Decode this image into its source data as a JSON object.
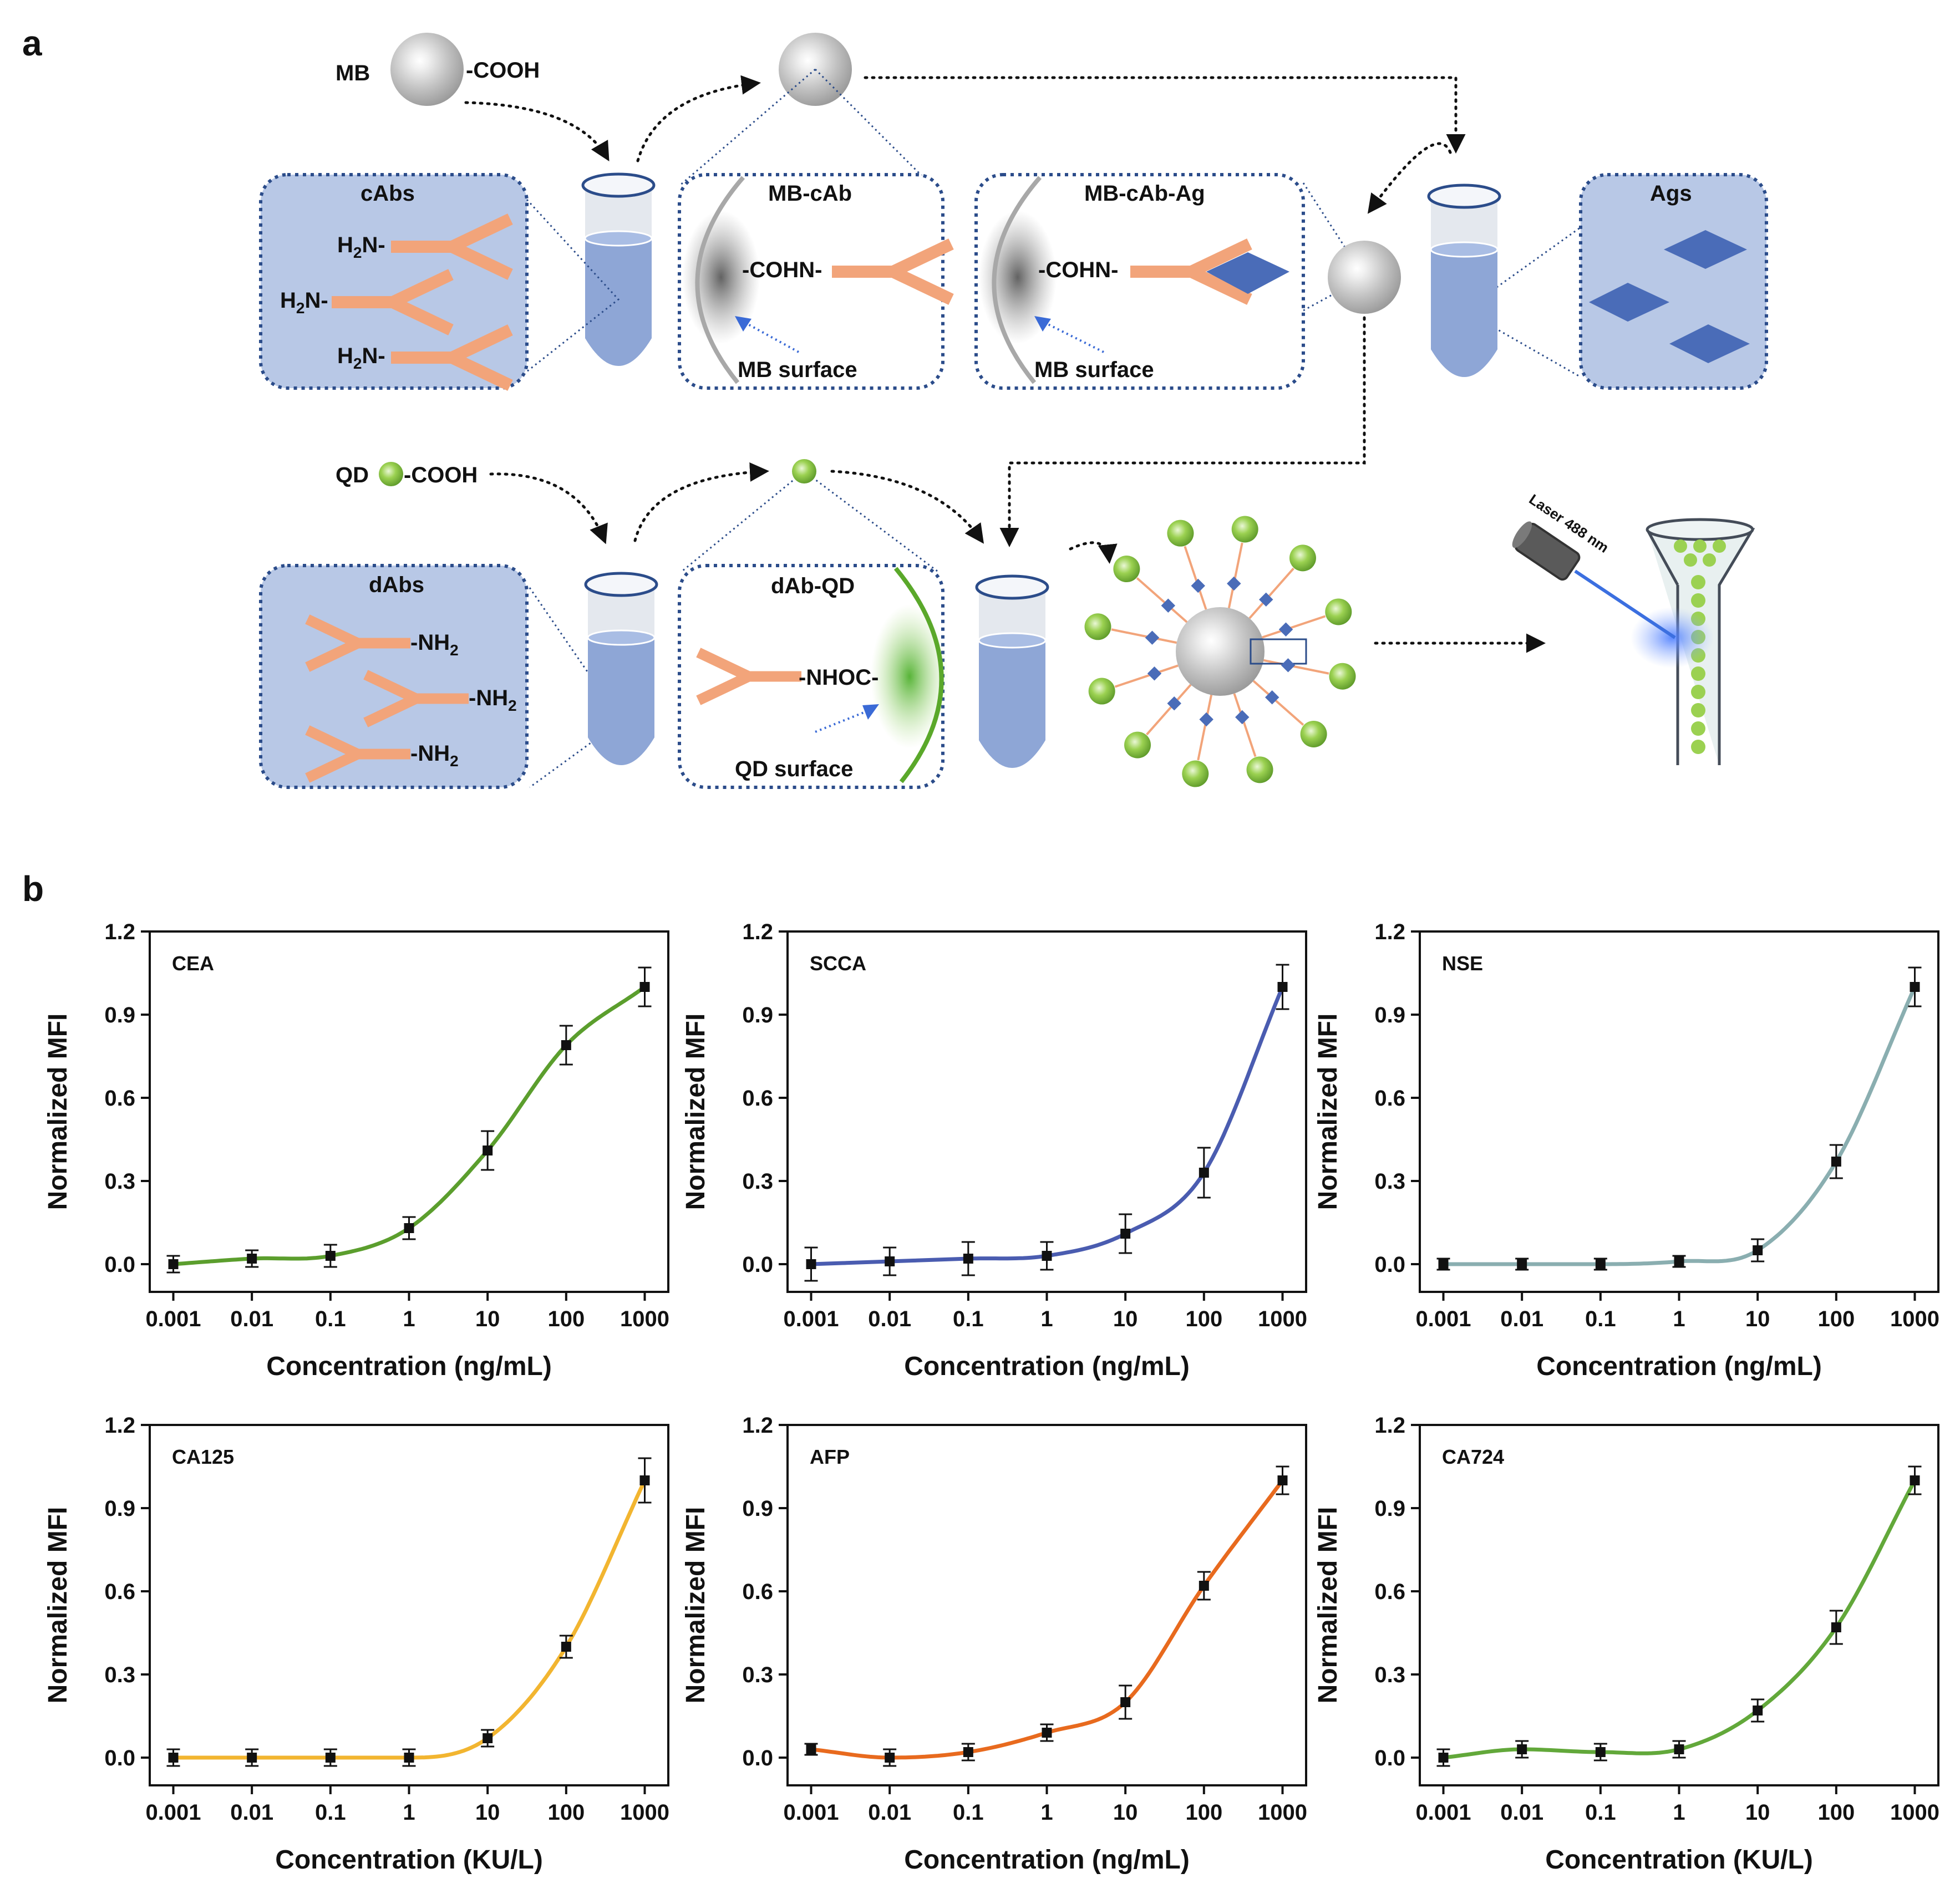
{
  "panels": {
    "a": "a",
    "b": "b"
  },
  "colors": {
    "box_fill": "#b8c8e6",
    "box_border": "#2b4c8a",
    "tube_liquid": "#8ea6d6",
    "tube_empty": "#e4e8ee",
    "antibody": "#f2a47a",
    "antigen": "#4a6cb8",
    "mb_gray": "#c9c9c9",
    "qd_green": "#8cc63f"
  },
  "scheme": {
    "mb_label": "MB",
    "mb_cooh": "-COOH",
    "qd_label": "QD",
    "qd_cooh": "-COOH",
    "cabs_box": {
      "title": "cAbs",
      "items": [
        {
          "main": "H",
          "sub": "2",
          "rest": "N-"
        },
        {
          "main": "H",
          "sub": "2",
          "rest": "N-"
        },
        {
          "main": "H",
          "sub": "2",
          "rest": "N-"
        }
      ]
    },
    "mbcab_box": {
      "title": "MB-cAb",
      "link": "-COHN-",
      "surface": "MB surface"
    },
    "mbcabag_box": {
      "title": "MB-cAb-Ag",
      "link": "-COHN-",
      "surface": "MB surface"
    },
    "ags_box": {
      "title": "Ags"
    },
    "dabs_box": {
      "title": "dAbs",
      "items": [
        {
          "main": "-NH",
          "sub": "2"
        },
        {
          "main": "-NH",
          "sub": "2"
        },
        {
          "main": "-NH",
          "sub": "2"
        }
      ]
    },
    "dabqd_box": {
      "title": "dAb-QD",
      "link": "-NHOC-",
      "surface": "QD surface"
    },
    "laser_label": "Laser 488 nm"
  },
  "chart_data": [
    {
      "type": "scatter",
      "title": "CEA",
      "xlabel": "Concentration (ng/mL)",
      "ylabel": "Normalized MFI",
      "xscale": "log",
      "ylim": [
        -0.1,
        1.2
      ],
      "x": [
        0.001,
        0.01,
        0.1,
        1,
        10,
        100,
        1000
      ],
      "y": [
        0.0,
        0.02,
        0.03,
        0.13,
        0.41,
        0.79,
        1.0
      ],
      "err": [
        0.03,
        0.03,
        0.04,
        0.04,
        0.07,
        0.07,
        0.07
      ],
      "fit_color": "#5b9e2d",
      "xticks": [
        "0.001",
        "0.01",
        "0.1",
        "1",
        "10",
        "100",
        "1000"
      ],
      "yticks": [
        "0.0",
        "0.3",
        "0.6",
        "0.9",
        "1.2"
      ]
    },
    {
      "type": "scatter",
      "title": "SCCA",
      "xlabel": "Concentration (ng/mL)",
      "ylabel": "Normalized MFI",
      "xscale": "log",
      "ylim": [
        -0.1,
        1.2
      ],
      "x": [
        0.001,
        0.01,
        0.1,
        1,
        10,
        100,
        1000
      ],
      "y": [
        0.0,
        0.01,
        0.02,
        0.03,
        0.11,
        0.33,
        1.0
      ],
      "err": [
        0.06,
        0.05,
        0.06,
        0.05,
        0.07,
        0.09,
        0.08
      ],
      "fit_color": "#4a5cb0",
      "xticks": [
        "0.001",
        "0.01",
        "0.1",
        "1",
        "10",
        "100",
        "1000"
      ],
      "yticks": [
        "0.0",
        "0.3",
        "0.6",
        "0.9",
        "1.2"
      ]
    },
    {
      "type": "scatter",
      "title": "NSE",
      "xlabel": "Concentration (ng/mL)",
      "ylabel": "Normalized MFI",
      "xscale": "log",
      "ylim": [
        -0.1,
        1.2
      ],
      "x": [
        0.001,
        0.01,
        0.1,
        1,
        10,
        100,
        1000
      ],
      "y": [
        0.0,
        0.0,
        0.0,
        0.01,
        0.05,
        0.37,
        1.0
      ],
      "err": [
        0.02,
        0.02,
        0.02,
        0.02,
        0.04,
        0.06,
        0.07
      ],
      "fit_color": "#8aaeb0",
      "xticks": [
        "0.001",
        "0.01",
        "0.1",
        "1",
        "10",
        "100",
        "1000"
      ],
      "yticks": [
        "0.0",
        "0.3",
        "0.6",
        "0.9",
        "1.2"
      ]
    },
    {
      "type": "scatter",
      "title": "CA125",
      "xlabel": "Concentration (KU/L)",
      "ylabel": "Normalized MFI",
      "xscale": "log",
      "ylim": [
        -0.1,
        1.2
      ],
      "x": [
        0.001,
        0.01,
        0.1,
        1,
        10,
        100,
        1000
      ],
      "y": [
        0.0,
        0.0,
        0.0,
        0.0,
        0.07,
        0.4,
        1.0
      ],
      "err": [
        0.03,
        0.03,
        0.03,
        0.03,
        0.03,
        0.04,
        0.08
      ],
      "fit_color": "#f2b530",
      "xticks": [
        "0.001",
        "0.01",
        "0.1",
        "1",
        "10",
        "100",
        "1000"
      ],
      "yticks": [
        "0.0",
        "0.3",
        "0.6",
        "0.9",
        "1.2"
      ]
    },
    {
      "type": "scatter",
      "title": "AFP",
      "xlabel": "Concentration (ng/mL)",
      "ylabel": "Normalized MFI",
      "xscale": "log",
      "ylim": [
        -0.1,
        1.2
      ],
      "x": [
        0.001,
        0.01,
        0.1,
        1,
        10,
        100,
        1000
      ],
      "y": [
        0.03,
        0.0,
        0.02,
        0.09,
        0.2,
        0.62,
        1.0
      ],
      "err": [
        0.02,
        0.03,
        0.03,
        0.03,
        0.06,
        0.05,
        0.05
      ],
      "fit_color": "#e86a1e",
      "xticks": [
        "0.001",
        "0.01",
        "0.1",
        "1",
        "10",
        "100",
        "1000"
      ],
      "yticks": [
        "0.0",
        "0.3",
        "0.6",
        "0.9",
        "1.2"
      ]
    },
    {
      "type": "scatter",
      "title": "CA724",
      "xlabel": "Concentration (KU/L)",
      "ylabel": "Normalized MFI",
      "xscale": "log",
      "ylim": [
        -0.1,
        1.2
      ],
      "x": [
        0.001,
        0.01,
        0.1,
        1,
        10,
        100,
        1000
      ],
      "y": [
        0.0,
        0.03,
        0.02,
        0.03,
        0.17,
        0.47,
        1.0
      ],
      "err": [
        0.03,
        0.03,
        0.03,
        0.03,
        0.04,
        0.06,
        0.05
      ],
      "fit_color": "#62a83a",
      "xticks": [
        "0.001",
        "0.01",
        "0.1",
        "1",
        "10",
        "100",
        "1000"
      ],
      "yticks": [
        "0.0",
        "0.3",
        "0.6",
        "0.9",
        "1.2"
      ]
    }
  ]
}
